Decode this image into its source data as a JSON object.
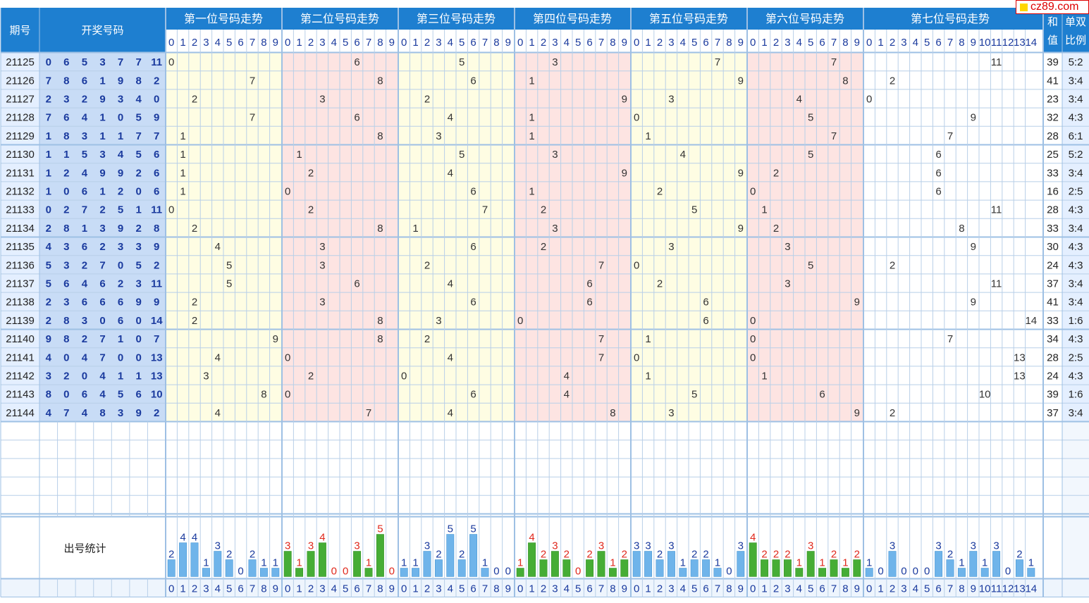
{
  "header": {
    "period_label": "期号",
    "draw_label": "开奖号码",
    "positions": [
      "第一位号码走势",
      "第二位号码走势",
      "第三位号码走势",
      "第四位号码走势",
      "第五位号码走势",
      "第六位号码走势",
      "第七位号码走势"
    ],
    "sum_label": [
      "和",
      "值"
    ],
    "parity_label": [
      "单双",
      "比例"
    ]
  },
  "stats_label": "出号统计",
  "watermark": "cz89.com",
  "colors": {
    "header_bg": "#1e7fd0",
    "period_bg": "#e4efff",
    "draw_bg": "#c8dcf6",
    "zone_yellow": "#fefde3",
    "zone_pink": "#fde4e2",
    "zone_white": "#ffffff",
    "grid": "#b8cfe8",
    "sep": "#9ec0e4",
    "bar_blue": "#6fb4ea",
    "bar_green": "#46ad35",
    "count_blue": "#1a3a9e",
    "count_red": "#e0281c"
  },
  "chart_data": {
    "type": "table",
    "draws": [
      {
        "period": "21125",
        "nums": [
          0,
          6,
          5,
          3,
          7,
          7,
          11
        ],
        "sum": 39,
        "ratio": "5:2"
      },
      {
        "period": "21126",
        "nums": [
          7,
          8,
          6,
          1,
          9,
          8,
          2
        ],
        "sum": 41,
        "ratio": "3:4"
      },
      {
        "period": "21127",
        "nums": [
          2,
          3,
          2,
          9,
          3,
          4,
          0
        ],
        "sum": 23,
        "ratio": "3:4"
      },
      {
        "period": "21128",
        "nums": [
          7,
          6,
          4,
          1,
          0,
          5,
          9
        ],
        "sum": 32,
        "ratio": "4:3"
      },
      {
        "period": "21129",
        "nums": [
          1,
          8,
          3,
          1,
          1,
          7,
          7
        ],
        "sum": 28,
        "ratio": "6:1"
      },
      {
        "period": "21130",
        "nums": [
          1,
          1,
          5,
          3,
          4,
          5,
          6
        ],
        "sum": 25,
        "ratio": "5:2"
      },
      {
        "period": "21131",
        "nums": [
          1,
          2,
          4,
          9,
          9,
          2,
          6
        ],
        "sum": 33,
        "ratio": "3:4"
      },
      {
        "period": "21132",
        "nums": [
          1,
          0,
          6,
          1,
          2,
          0,
          6
        ],
        "sum": 16,
        "ratio": "2:5"
      },
      {
        "period": "21133",
        "nums": [
          0,
          2,
          7,
          2,
          5,
          1,
          11
        ],
        "sum": 28,
        "ratio": "4:3"
      },
      {
        "period": "21134",
        "nums": [
          2,
          8,
          1,
          3,
          9,
          2,
          8
        ],
        "sum": 33,
        "ratio": "3:4"
      },
      {
        "period": "21135",
        "nums": [
          4,
          3,
          6,
          2,
          3,
          3,
          9
        ],
        "sum": 30,
        "ratio": "4:3"
      },
      {
        "period": "21136",
        "nums": [
          5,
          3,
          2,
          7,
          0,
          5,
          2
        ],
        "sum": 24,
        "ratio": "4:3"
      },
      {
        "period": "21137",
        "nums": [
          5,
          6,
          4,
          6,
          2,
          3,
          11
        ],
        "sum": 37,
        "ratio": "3:4"
      },
      {
        "period": "21138",
        "nums": [
          2,
          3,
          6,
          6,
          6,
          9,
          9
        ],
        "sum": 41,
        "ratio": "3:4"
      },
      {
        "period": "21139",
        "nums": [
          2,
          8,
          3,
          0,
          6,
          0,
          14
        ],
        "sum": 33,
        "ratio": "1:6"
      },
      {
        "period": "21140",
        "nums": [
          9,
          8,
          2,
          7,
          1,
          0,
          7
        ],
        "sum": 34,
        "ratio": "4:3"
      },
      {
        "period": "21141",
        "nums": [
          4,
          0,
          4,
          7,
          0,
          0,
          13
        ],
        "sum": 28,
        "ratio": "2:5"
      },
      {
        "period": "21142",
        "nums": [
          3,
          2,
          0,
          4,
          1,
          1,
          13
        ],
        "sum": 24,
        "ratio": "4:3"
      },
      {
        "period": "21143",
        "nums": [
          8,
          0,
          6,
          4,
          5,
          6,
          10
        ],
        "sum": 39,
        "ratio": "1:6"
      },
      {
        "period": "21144",
        "nums": [
          4,
          7,
          4,
          8,
          3,
          9,
          2
        ],
        "sum": 37,
        "ratio": "3:4"
      }
    ],
    "counts": [
      [
        2,
        4,
        4,
        1,
        3,
        2,
        0,
        2,
        1,
        1
      ],
      [
        3,
        1,
        3,
        4,
        0,
        0,
        3,
        1,
        5,
        0
      ],
      [
        1,
        1,
        3,
        2,
        5,
        2,
        5,
        1,
        0,
        0
      ],
      [
        1,
        4,
        2,
        3,
        2,
        0,
        2,
        3,
        1,
        2
      ],
      [
        3,
        3,
        2,
        3,
        1,
        2,
        2,
        1,
        0,
        3
      ],
      [
        4,
        2,
        2,
        2,
        1,
        3,
        1,
        2,
        1,
        2
      ],
      [
        1,
        0,
        3,
        0,
        0,
        0,
        3,
        2,
        1,
        3,
        1,
        3,
        0,
        2,
        1
      ]
    ]
  }
}
